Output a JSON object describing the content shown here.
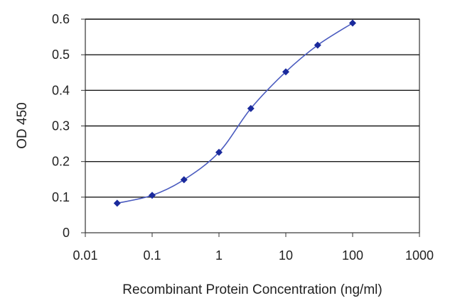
{
  "chart_data": {
    "type": "line",
    "title": "",
    "xlabel": "Recombinant Protein Concentration (ng/ml)",
    "ylabel": "OD 450",
    "x_scale": "log",
    "xlim": [
      0.01,
      1000
    ],
    "ylim": [
      0,
      0.6
    ],
    "x_ticks": [
      0.01,
      0.1,
      1,
      10,
      100,
      1000
    ],
    "x_tick_labels": [
      "0.01",
      "0.1",
      "1",
      "10",
      "100",
      "1000"
    ],
    "y_ticks": [
      0,
      0.1,
      0.2,
      0.3,
      0.4,
      0.5,
      0.6
    ],
    "y_tick_labels": [
      "0",
      "0.1",
      "0.2",
      "0.3",
      "0.4",
      "0.5",
      "0.6"
    ],
    "grid": "horizontal",
    "legend": "none",
    "series": [
      {
        "x": [
          0.03,
          0.1,
          0.3,
          1,
          3,
          10,
          30,
          100
        ],
        "y": [
          0.083,
          0.105,
          0.149,
          0.226,
          0.349,
          0.452,
          0.527,
          0.589
        ]
      }
    ],
    "line_color": "#4a5bbf",
    "marker_color": "#1a2a9c",
    "grid_color": "#1a1a1a"
  }
}
